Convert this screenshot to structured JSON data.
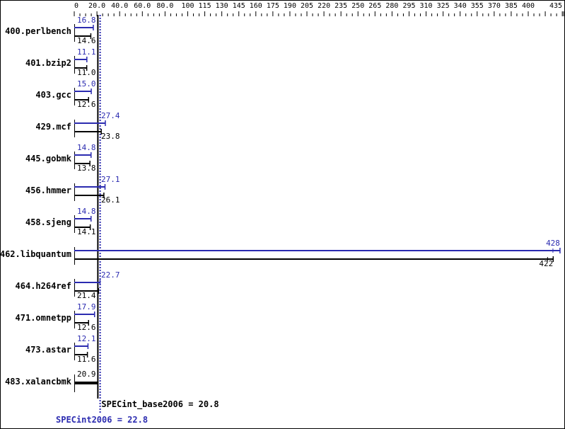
{
  "chart_data": {
    "type": "bar",
    "orientation": "horizontal",
    "xlim": [
      0,
      435
    ],
    "tick_labels": [
      "0",
      "20.0",
      "40.0",
      "60.0",
      "80.0",
      "100",
      "115",
      "130",
      "145",
      "160",
      "175",
      "190",
      "205",
      "220",
      "235",
      "250",
      "265",
      "280",
      "295",
      "310",
      "325",
      "340",
      "355",
      "370",
      "385",
      "400",
      "435"
    ],
    "tick_values": [
      0,
      20,
      40,
      60,
      80,
      100,
      115,
      130,
      145,
      160,
      175,
      190,
      205,
      220,
      235,
      250,
      265,
      280,
      295,
      310,
      325,
      340,
      355,
      370,
      385,
      400,
      435
    ],
    "categories": [
      "400.perlbench",
      "401.bzip2",
      "403.gcc",
      "429.mcf",
      "445.gobmk",
      "456.hmmer",
      "458.sjeng",
      "462.libquantum",
      "464.h264ref",
      "471.omnetpp",
      "473.astar",
      "483.xalancbmk"
    ],
    "series": [
      {
        "name": "SPECint2006",
        "color": "#2b2bb0",
        "values": [
          16.8,
          11.1,
          15.0,
          27.4,
          14.8,
          27.1,
          14.8,
          428,
          22.7,
          17.9,
          12.1,
          null
        ],
        "labels": [
          "16.8",
          "11.1",
          "15.0",
          "27.4",
          "14.8",
          "27.1",
          "14.8",
          "428",
          "22.7",
          "17.9",
          "12.1",
          ""
        ]
      },
      {
        "name": "SPECint_base2006",
        "color": "#000000",
        "values": [
          14.6,
          11.0,
          12.6,
          23.8,
          13.8,
          26.1,
          14.1,
          422,
          21.4,
          12.6,
          11.6,
          20.9
        ],
        "labels": [
          "14.6",
          "11.0",
          "12.6",
          "23.8",
          "13.8",
          "26.1",
          "14.1",
          "422",
          "21.4",
          "12.6",
          "11.6",
          "20.9"
        ]
      }
    ],
    "reference_lines": {
      "base": {
        "value": 20.8,
        "label": "SPECint_base2006 = 20.8"
      },
      "peak": {
        "value": 22.8,
        "label": "SPECint2006 = 22.8"
      }
    }
  }
}
